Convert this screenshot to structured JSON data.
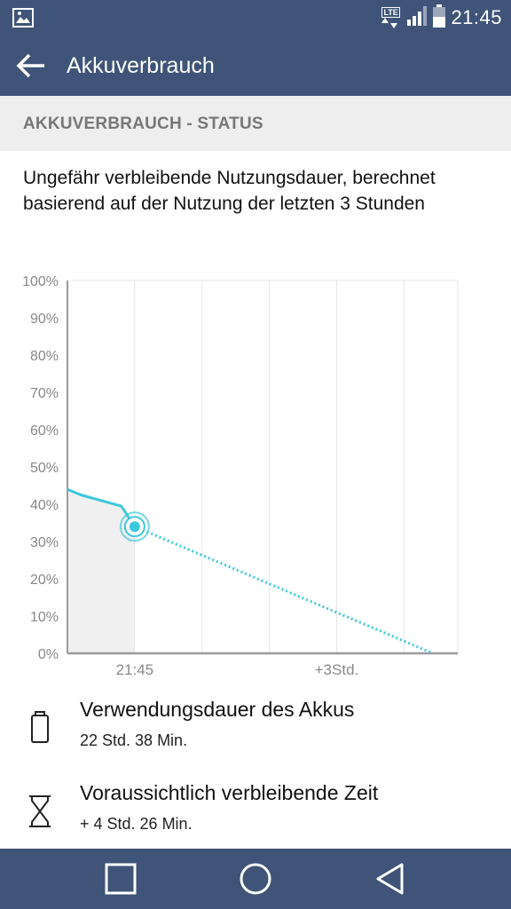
{
  "status_bar": {
    "time": "21:45",
    "network_label": "LTE"
  },
  "app_bar": {
    "title": "Akkuverbrauch"
  },
  "section": {
    "header": "AKKUVERBRAUCH - STATUS",
    "description": "Ungefähr verbleibende Nutzungsdauer, berechnet basierend auf der Nutzung der letzten 3 Stunden"
  },
  "chart_data": {
    "type": "line",
    "x_tick_labels": [
      "21:45",
      "+3Std."
    ],
    "y_tick_labels": [
      "0%",
      "10%",
      "20%",
      "30%",
      "40%",
      "50%",
      "60%",
      "70%",
      "80%",
      "90%",
      "100%"
    ],
    "ylim": [
      0,
      100
    ],
    "grid": true,
    "series": [
      {
        "kind": "history",
        "points": [
          [
            -1.0,
            44
          ],
          [
            -0.8,
            42.5
          ],
          [
            -0.4,
            40.5
          ],
          [
            -0.2,
            39.5
          ],
          [
            0.0,
            34
          ]
        ]
      },
      {
        "kind": "projection",
        "points": [
          [
            0.0,
            34
          ],
          [
            4.43,
            0
          ]
        ]
      }
    ],
    "current_point": {
      "x": 0.0,
      "y": 34
    },
    "colors": {
      "line": "#3cc8dc",
      "fill": "#f0f0f0",
      "grid": "#e6e6e6",
      "axis": "#9a9a9a",
      "tick_label": "#888888"
    }
  },
  "info_items": [
    {
      "icon": "battery-icon",
      "title": "Verwendungsdauer des Akkus",
      "value": "22 Std. 38 Min."
    },
    {
      "icon": "hourglass-icon",
      "title": "Voraussichtlich verbleibende Zeit",
      "value": "+ 4 Std. 26 Min."
    }
  ],
  "nav_bar": {
    "items": [
      "recents-button",
      "home-button",
      "back-button"
    ]
  }
}
